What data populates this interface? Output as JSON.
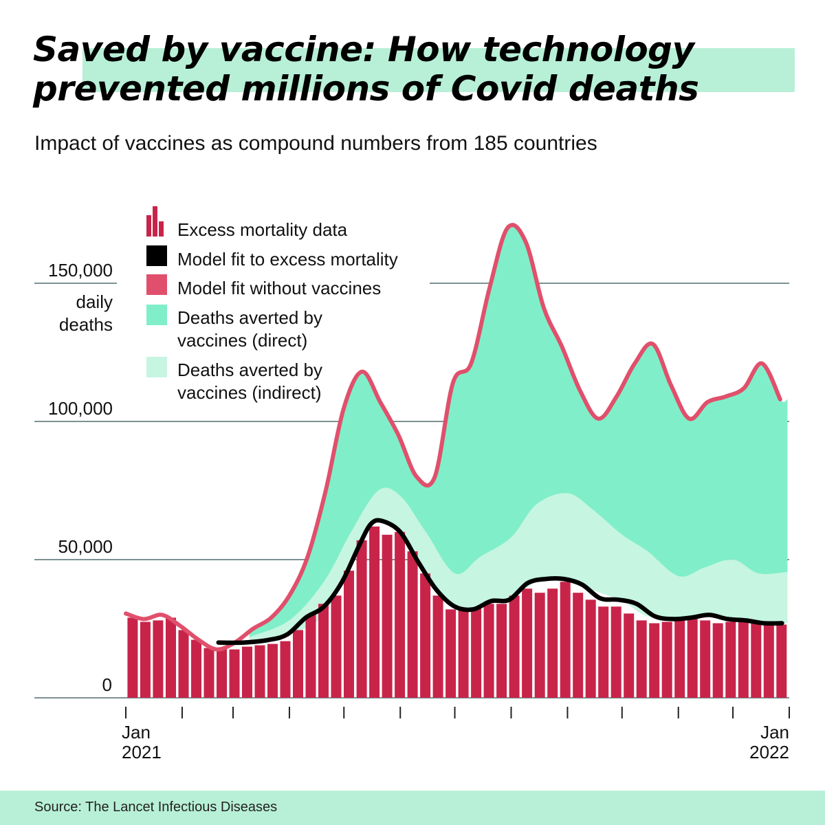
{
  "title": "Saved by vaccine: How technology prevented millions of Covid deaths",
  "subtitle": "Impact of vaccines as compound numbers from 185 countries",
  "source": "Source: The Lancet Infectious Diseases",
  "colors": {
    "bars": "#c8244a",
    "model_fit": "#000000",
    "without_vaccines_line": "#e0506c",
    "direct": "#80efc9",
    "indirect": "#c6f5e2",
    "gridline": "#2f4f4f",
    "band": "#b8f0d7"
  },
  "chart_data": {
    "type": "area",
    "title": "Saved by vaccine: How technology prevented millions of Covid deaths",
    "subtitle": "Impact of vaccines as compound numbers from 185 countries",
    "ylabel": "daily deaths",
    "ylim": [
      0,
      175000
    ],
    "xlim": [
      "2021-01-01",
      "2022-01-01"
    ],
    "grid": true,
    "legend_position": "top-left",
    "y_ticks": [
      {
        "value": 0,
        "label": "0"
      },
      {
        "value": 50000,
        "label": "50,000"
      },
      {
        "value": 100000,
        "label": "100,000"
      },
      {
        "value": 150000,
        "label": "150,000"
      }
    ],
    "x_ticks": [
      {
        "date": "2021-01-01",
        "label_top": "Jan",
        "label_bottom": "2021"
      },
      {
        "date": "2021-02-01",
        "label_top": "",
        "label_bottom": ""
      },
      {
        "date": "2021-03-01",
        "label_top": "",
        "label_bottom": ""
      },
      {
        "date": "2021-04-01",
        "label_top": "",
        "label_bottom": ""
      },
      {
        "date": "2021-05-01",
        "label_top": "",
        "label_bottom": ""
      },
      {
        "date": "2021-06-01",
        "label_top": "",
        "label_bottom": ""
      },
      {
        "date": "2021-07-01",
        "label_top": "",
        "label_bottom": ""
      },
      {
        "date": "2021-08-01",
        "label_top": "",
        "label_bottom": ""
      },
      {
        "date": "2021-09-01",
        "label_top": "",
        "label_bottom": ""
      },
      {
        "date": "2021-10-01",
        "label_top": "",
        "label_bottom": ""
      },
      {
        "date": "2021-11-01",
        "label_top": "",
        "label_bottom": ""
      },
      {
        "date": "2021-12-01",
        "label_top": "",
        "label_bottom": ""
      },
      {
        "date": "2022-01-01",
        "label_top": "Jan",
        "label_bottom": "2022"
      }
    ],
    "legend": [
      {
        "key": "bars",
        "label": "Excess mortality data"
      },
      {
        "key": "model_fit",
        "label": "Model fit to excess mortality"
      },
      {
        "key": "without_vaccines",
        "label": "Model fit without vaccines"
      },
      {
        "key": "direct",
        "label": "Deaths averted by vaccines (direct)"
      },
      {
        "key": "indirect",
        "label": "Deaths averted by vaccines (indirect)"
      }
    ],
    "series": [
      {
        "name": "Excess mortality data",
        "type": "bar",
        "x": [
          "2021-01-04",
          "2021-01-11",
          "2021-01-18",
          "2021-01-25",
          "2021-02-01",
          "2021-02-08",
          "2021-02-15",
          "2021-02-22",
          "2021-03-01",
          "2021-03-08",
          "2021-03-15",
          "2021-03-22",
          "2021-03-29",
          "2021-04-05",
          "2021-04-12",
          "2021-04-19",
          "2021-04-26",
          "2021-05-03",
          "2021-05-10",
          "2021-05-17",
          "2021-05-24",
          "2021-05-31",
          "2021-06-07",
          "2021-06-14",
          "2021-06-21",
          "2021-06-28",
          "2021-07-05",
          "2021-07-12",
          "2021-07-19",
          "2021-07-26",
          "2021-08-02",
          "2021-08-09",
          "2021-08-16",
          "2021-08-23",
          "2021-08-30",
          "2021-09-06",
          "2021-09-13",
          "2021-09-20",
          "2021-09-27",
          "2021-10-04",
          "2021-10-11",
          "2021-10-18",
          "2021-10-25",
          "2021-11-01",
          "2021-11-08",
          "2021-11-15",
          "2021-11-22",
          "2021-11-29",
          "2021-12-06",
          "2021-12-13",
          "2021-12-20",
          "2021-12-27"
        ],
        "values": [
          29000,
          27500,
          28000,
          29000,
          24500,
          21000,
          18000,
          17500,
          17500,
          18500,
          19000,
          19500,
          20500,
          24500,
          30000,
          34000,
          37000,
          46000,
          57000,
          62000,
          59000,
          60000,
          53000,
          45000,
          37000,
          32000,
          32000,
          32500,
          34000,
          34000,
          37000,
          39500,
          38000,
          39500,
          42000,
          38000,
          35500,
          33000,
          33000,
          30500,
          28000,
          27000,
          27500,
          28500,
          29000,
          28000,
          27000,
          27500,
          28000,
          27500,
          27000,
          26500
        ]
      },
      {
        "name": "Model fit to excess mortality",
        "type": "line",
        "x": [
          "2021-02-21",
          "2021-03-07",
          "2021-03-21",
          "2021-03-31",
          "2021-04-10",
          "2021-04-20",
          "2021-04-30",
          "2021-05-10",
          "2021-05-16",
          "2021-05-22",
          "2021-06-01",
          "2021-06-11",
          "2021-06-21",
          "2021-07-01",
          "2021-07-11",
          "2021-07-21",
          "2021-07-31",
          "2021-08-10",
          "2021-08-20",
          "2021-08-30",
          "2021-09-09",
          "2021-09-19",
          "2021-09-29",
          "2021-10-09",
          "2021-10-19",
          "2021-10-29",
          "2021-11-08",
          "2021-11-18",
          "2021-11-28",
          "2021-12-08",
          "2021-12-18",
          "2021-12-28"
        ],
        "values": [
          20000,
          20000,
          21000,
          23000,
          29000,
          33000,
          42000,
          56000,
          63000,
          64000,
          60000,
          49000,
          39000,
          33000,
          32000,
          35000,
          35500,
          41500,
          43000,
          43000,
          41000,
          36000,
          35500,
          34000,
          29500,
          28500,
          29000,
          30000,
          28500,
          28000,
          27000,
          27000
        ]
      },
      {
        "name": "Model fit without vaccines",
        "type": "line",
        "x": [
          "2021-01-01",
          "2021-01-11",
          "2021-01-21",
          "2021-01-31",
          "2021-02-10",
          "2021-02-20",
          "2021-03-02",
          "2021-03-12",
          "2021-03-22",
          "2021-04-01",
          "2021-04-11",
          "2021-04-21",
          "2021-05-01",
          "2021-05-11",
          "2021-05-21",
          "2021-05-31",
          "2021-06-10",
          "2021-06-20",
          "2021-06-30",
          "2021-07-10",
          "2021-07-20",
          "2021-07-30",
          "2021-08-09",
          "2021-08-19",
          "2021-08-29",
          "2021-09-08",
          "2021-09-18",
          "2021-09-28",
          "2021-10-08",
          "2021-10-18",
          "2021-10-28",
          "2021-11-07",
          "2021-11-17",
          "2021-11-27",
          "2021-12-07",
          "2021-12-17",
          "2021-12-27"
        ],
        "values": [
          30500,
          28500,
          30000,
          26000,
          21000,
          17500,
          20000,
          25000,
          29000,
          37000,
          51000,
          75000,
          105000,
          118000,
          107000,
          95000,
          80000,
          80000,
          114000,
          121000,
          148000,
          170000,
          165000,
          141000,
          127000,
          111000,
          101000,
          109000,
          121000,
          128000,
          113000,
          101000,
          107000,
          109000,
          112000,
          121000,
          108000
        ]
      },
      {
        "name": "Deaths averted by vaccines (direct)",
        "type": "area",
        "note_band": "between indirect-upper and without-vaccines line"
      },
      {
        "name": "Deaths averted by vaccines (indirect)",
        "type": "area",
        "x": [
          "2021-03-10",
          "2021-04-01",
          "2021-04-20",
          "2021-05-05",
          "2021-05-20",
          "2021-06-01",
          "2021-06-15",
          "2021-07-01",
          "2021-07-15",
          "2021-08-01",
          "2021-08-15",
          "2021-09-01",
          "2021-09-15",
          "2021-10-01",
          "2021-10-15",
          "2021-11-01",
          "2021-11-15",
          "2021-12-01",
          "2021-12-15",
          "2021-12-31"
        ],
        "upper": [
          22000,
          28000,
          42000,
          60000,
          75000,
          73000,
          60000,
          45000,
          51000,
          58000,
          70000,
          74000,
          68000,
          59000,
          53000,
          44000,
          47000,
          50000,
          45000,
          45500
        ],
        "lower": [
          20000,
          23000,
          30000,
          50000,
          64000,
          60000,
          45000,
          33000,
          33500,
          36000,
          42000,
          43000,
          39000,
          35000,
          29500,
          28500,
          29500,
          28500,
          27500,
          27000
        ]
      }
    ]
  }
}
